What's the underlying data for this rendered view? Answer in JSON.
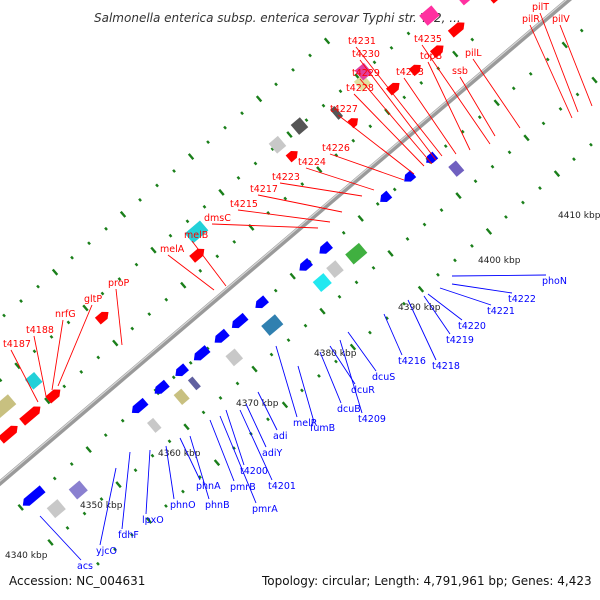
{
  "title": "Salmonella enterica subsp. enterica serovar Typhi str. Ty2, ...",
  "footer": {
    "accession": "Accession: NC_004631",
    "topology": "Topology: circular; Length: 4,791,961 bp; Genes: 4,423"
  },
  "colors": {
    "forward_label": "#ff0000",
    "reverse_label": "#0000ff",
    "backbone": "#999999",
    "tick": "#1a7f1a"
  },
  "scale_labels": [
    "4340 kbp",
    "4350 kbp",
    "4360 kbp",
    "4370 kbp",
    "4380 kbp",
    "4390 kbp",
    "4400 kbp",
    "4410 kbp"
  ],
  "forward_genes": [
    "t4187",
    "t4188",
    "nrfG",
    "gltP",
    "proP",
    "melA",
    "melB",
    "dmsC",
    "t4215",
    "t4217",
    "t4223",
    "t4224",
    "t4226",
    "t4227",
    "t4228",
    "t4229",
    "t4230",
    "t4231",
    "t4233",
    "topB",
    "t4235",
    "ssb",
    "pilL",
    "pilR",
    "pilT",
    "pilV"
  ],
  "reverse_genes": [
    "acs",
    "yjcO",
    "fdhF",
    "lpxO",
    "phnO",
    "phnB",
    "phnA",
    "pmrB",
    "pmrA",
    "t4200",
    "t4201",
    "adiY",
    "adi",
    "melR",
    "fumB",
    "t4209",
    "dcuB",
    "dcuR",
    "dcuS",
    "t4216",
    "t4218",
    "t4219",
    "t4220",
    "t4221",
    "t4222",
    "phoN"
  ]
}
